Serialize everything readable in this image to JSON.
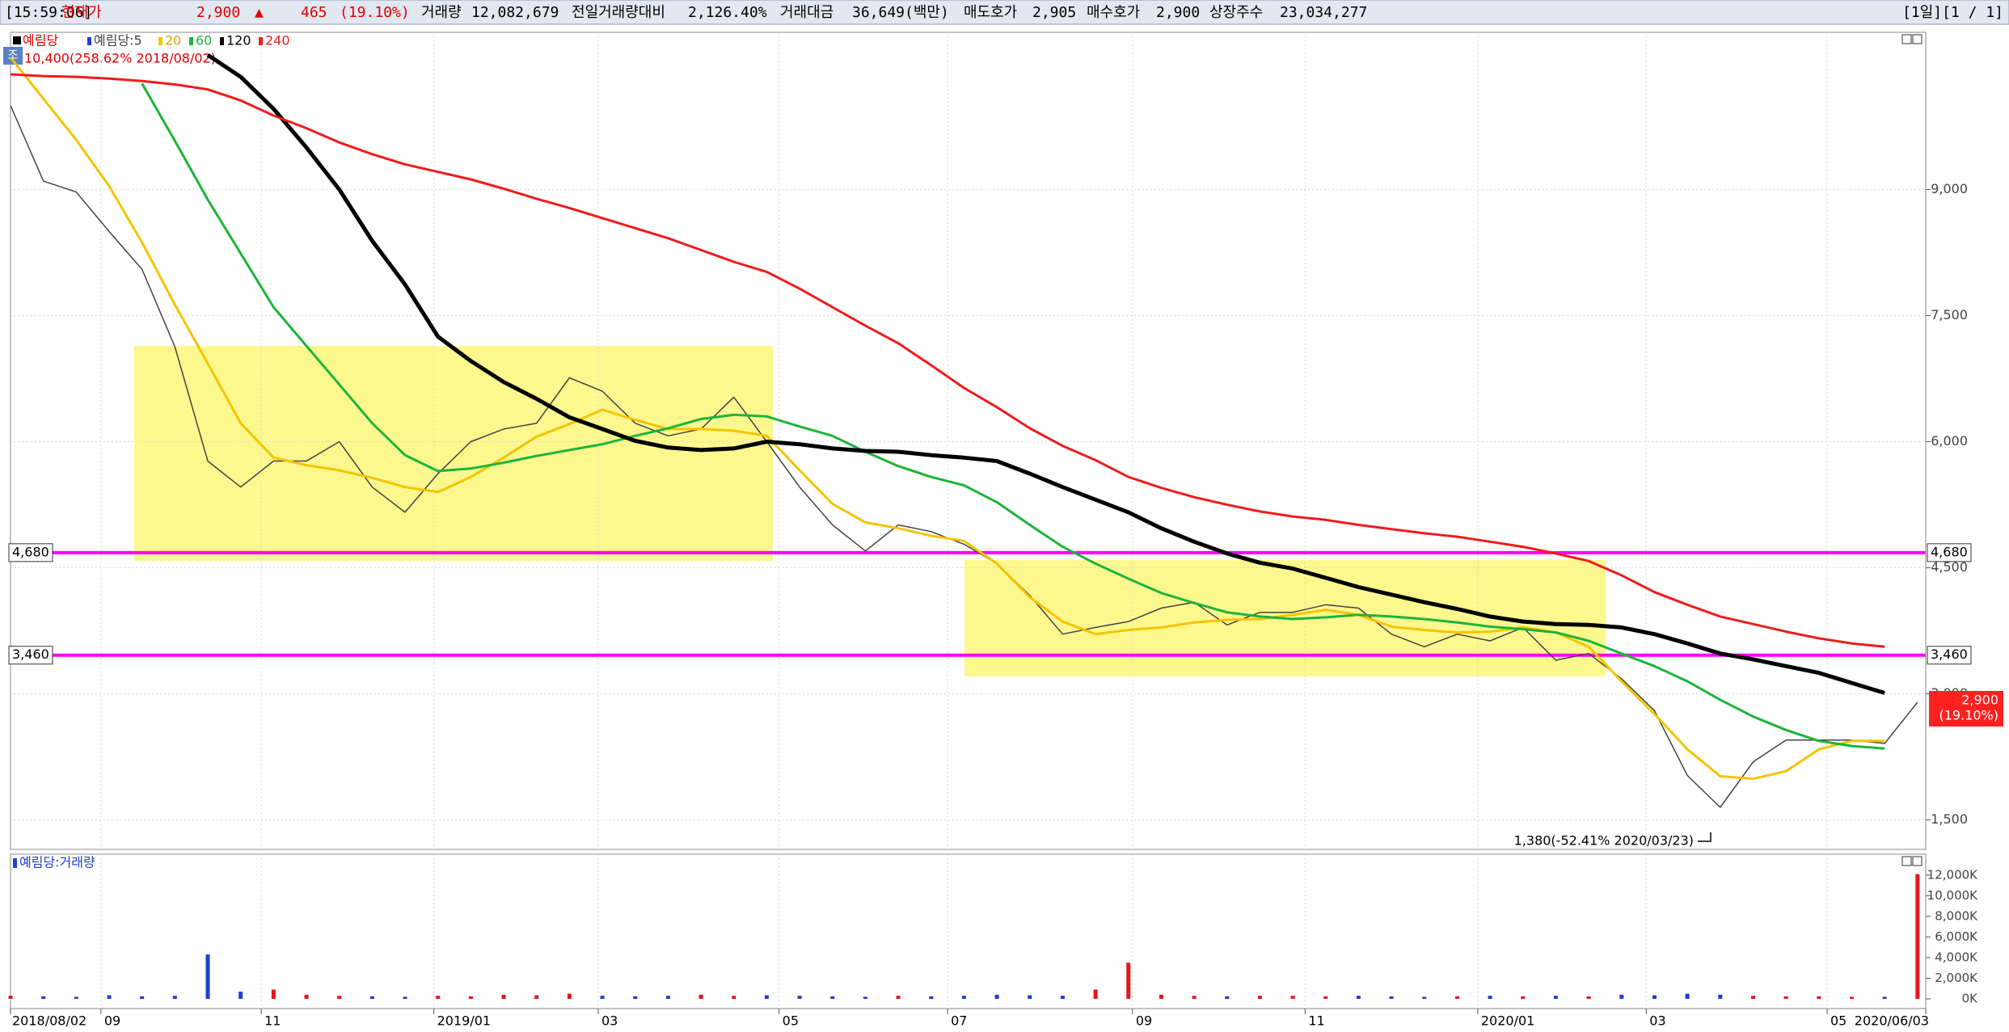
{
  "header": {
    "items": [
      {
        "text": "[15:59:06]",
        "color": "#000000"
      },
      {
        "text": "현재가",
        "color": "#e00000"
      },
      {
        "text": "2,900",
        "color": "#e00000"
      },
      {
        "text": "▲",
        "color": "#e00000"
      },
      {
        "text": "465",
        "color": "#e00000"
      },
      {
        "text": "(19.10%)",
        "color": "#e00000"
      },
      {
        "text": "거래량",
        "color": "#000000"
      },
      {
        "text": "12,082,679",
        "color": "#000000"
      },
      {
        "text": "전일거래량대비",
        "color": "#000000"
      },
      {
        "text": "2,126.40%",
        "color": "#000000"
      },
      {
        "text": "거래대금",
        "color": "#000000"
      },
      {
        "text": "36,649(백만)",
        "color": "#000000"
      },
      {
        "text": "매도호가",
        "color": "#000000"
      },
      {
        "text": "2,905",
        "color": "#000000"
      },
      {
        "text": "매수호가",
        "color": "#000000"
      },
      {
        "text": "2,900",
        "color": "#000000"
      },
      {
        "text": "상장주수",
        "color": "#000000"
      },
      {
        "text": "23,034,277",
        "color": "#000000"
      }
    ],
    "page": "[1일][1 / 1]"
  },
  "chart_data": {
    "type": "line",
    "symbol": "예림당",
    "badge": "조",
    "x": [
      0,
      8,
      16,
      24,
      32,
      40,
      48,
      56,
      64,
      72,
      80,
      88,
      96,
      104,
      112,
      120,
      128,
      136,
      144,
      152,
      160,
      168,
      176,
      184,
      192,
      200,
      208,
      216,
      224,
      232,
      240,
      248,
      256,
      264,
      272,
      280,
      288,
      296,
      304,
      312,
      320,
      328,
      336,
      344,
      352,
      360,
      368,
      376,
      384,
      392,
      400,
      408,
      416,
      424,
      432,
      440,
      448,
      456,
      464
    ],
    "xlim": [
      0,
      466
    ],
    "xticks": [
      {
        "value": 0,
        "label": "2018/08/02"
      },
      {
        "value": 22,
        "label": "09"
      },
      {
        "value": 61,
        "label": "11"
      },
      {
        "value": 103,
        "label": "2019/01"
      },
      {
        "value": 143,
        "label": "03"
      },
      {
        "value": 187,
        "label": "05"
      },
      {
        "value": 228,
        "label": "07"
      },
      {
        "value": 273,
        "label": "09"
      },
      {
        "value": 315,
        "label": "11"
      },
      {
        "value": 357,
        "label": "2020/01"
      },
      {
        "value": 398,
        "label": "03"
      },
      {
        "value": 442,
        "label": "05"
      },
      {
        "value": 466,
        "label": "2020/06/03"
      }
    ],
    "ylim": [
      1150,
      10870
    ],
    "yticks": [
      {
        "value": 1500,
        "label": "1,500"
      },
      {
        "value": 3000,
        "label": "3,000"
      },
      {
        "value": 4500,
        "label": "4,500"
      },
      {
        "value": 6000,
        "label": "6,000"
      },
      {
        "value": 7500,
        "label": "7,500"
      },
      {
        "value": 9000,
        "label": "9,000"
      }
    ],
    "grid": true,
    "series": [
      {
        "name": "예림당:5",
        "color": "#444444",
        "values": [
          10000,
          9100,
          8970,
          8500,
          8050,
          7130,
          5770,
          5460,
          5770,
          5770,
          6000,
          5460,
          5160,
          5620,
          6000,
          6150,
          6220,
          6760,
          6600,
          6220,
          6070,
          6150,
          6530,
          6000,
          5460,
          5010,
          4700,
          5010,
          4930,
          4780,
          4550,
          4170,
          3710,
          3790,
          3860,
          4020,
          4090,
          3820,
          3970,
          3970,
          4060,
          4020,
          3710,
          3560,
          3710,
          3630,
          3790,
          3400,
          3480,
          3180,
          2800,
          2030,
          1650,
          2190,
          2450,
          2450,
          2450,
          2410,
          2900
        ]
      },
      {
        "name": "20",
        "color": "#f5c400",
        "values": [
          10570,
          10080,
          9590,
          9040,
          8370,
          7630,
          6930,
          6220,
          5810,
          5720,
          5660,
          5570,
          5460,
          5400,
          5580,
          5810,
          6060,
          6210,
          6380,
          6260,
          6150,
          6150,
          6130,
          6070,
          5660,
          5260,
          5040,
          4970,
          4880,
          4820,
          4550,
          4150,
          3860,
          3710,
          3760,
          3790,
          3850,
          3880,
          3890,
          3940,
          4000,
          3940,
          3800,
          3760,
          3730,
          3740,
          3790,
          3730,
          3560,
          3150,
          2760,
          2340,
          2020,
          1990,
          2080,
          2340,
          2440,
          2440,
          null
        ]
      },
      {
        "name": "60",
        "color": "#1db43a",
        "values": [
          null,
          null,
          null,
          null,
          10260,
          9580,
          8880,
          8240,
          7600,
          7140,
          6680,
          6220,
          5840,
          5650,
          5680,
          5750,
          5830,
          5900,
          5970,
          6070,
          6160,
          6270,
          6320,
          6300,
          6180,
          6070,
          5880,
          5710,
          5580,
          5480,
          5280,
          5010,
          4750,
          4550,
          4370,
          4200,
          4080,
          3970,
          3920,
          3890,
          3910,
          3940,
          3920,
          3890,
          3850,
          3800,
          3770,
          3730,
          3630,
          3480,
          3330,
          3150,
          2930,
          2730,
          2570,
          2440,
          2380,
          2350,
          null
        ]
      },
      {
        "name": "120",
        "color": "#000000",
        "values": [
          null,
          null,
          null,
          null,
          null,
          null,
          10600,
          10340,
          9960,
          9500,
          9000,
          8390,
          7870,
          7250,
          6960,
          6710,
          6510,
          6290,
          6150,
          6010,
          5930,
          5900,
          5920,
          6000,
          5970,
          5920,
          5890,
          5880,
          5840,
          5810,
          5770,
          5620,
          5460,
          5310,
          5160,
          4970,
          4810,
          4670,
          4560,
          4490,
          4380,
          4270,
          4180,
          4090,
          4010,
          3920,
          3860,
          3830,
          3820,
          3790,
          3710,
          3600,
          3480,
          3410,
          3330,
          3250,
          3130,
          3010,
          null
        ]
      },
      {
        "name": "240",
        "color": "#ee1c1c",
        "values": [
          10370,
          10350,
          10340,
          10320,
          10290,
          10250,
          10190,
          10060,
          9880,
          9730,
          9560,
          9420,
          9300,
          9210,
          9120,
          9010,
          8890,
          8780,
          8660,
          8540,
          8420,
          8280,
          8140,
          8020,
          7820,
          7600,
          7380,
          7170,
          6910,
          6640,
          6410,
          6160,
          5950,
          5780,
          5580,
          5450,
          5340,
          5250,
          5170,
          5110,
          5070,
          5010,
          4960,
          4910,
          4870,
          4810,
          4750,
          4670,
          4580,
          4410,
          4210,
          4060,
          3920,
          3830,
          3740,
          3660,
          3600,
          3560,
          null
        ]
      }
    ],
    "hlines": [
      {
        "value": 4680,
        "label": "4,680"
      },
      {
        "value": 3460,
        "label": "3,460"
      }
    ],
    "hline_color": "#ff00ff",
    "current": {
      "value": 2900,
      "label": "2,900",
      "change": "(19.10%)",
      "color": "#ff2020"
    },
    "high_label": "10,400(258.62% 2018/08/02)",
    "low_label": "1,380(-52.41% 2020/03/23)",
    "volume": {
      "label": "예림당:거래량",
      "up_color": "#e8141b",
      "down_color": "#1f3fd0",
      "values": [
        300,
        250,
        200,
        350,
        250,
        300,
        4300,
        700,
        900,
        400,
        300,
        250,
        200,
        300,
        250,
        400,
        350,
        500,
        300,
        250,
        300,
        400,
        300,
        350,
        300,
        250,
        200,
        300,
        250,
        300,
        400,
        350,
        300,
        900,
        3500,
        400,
        300,
        250,
        300,
        300,
        250,
        300,
        250,
        200,
        250,
        300,
        250,
        300,
        250,
        400,
        350,
        500,
        400,
        300,
        250,
        250,
        200,
        200,
        12083
      ],
      "ylim": [
        0,
        13000
      ],
      "yticks": [
        {
          "value": 0,
          "label": "0K"
        },
        {
          "value": 2000,
          "label": "2,000K"
        },
        {
          "value": 4000,
          "label": "4,000K"
        },
        {
          "value": 6000,
          "label": "6,000K"
        },
        {
          "value": 8000,
          "label": "8,000K"
        },
        {
          "value": 10000,
          "label": "10,000K"
        },
        {
          "value": 12000,
          "label": "12,000K"
        }
      ]
    }
  }
}
